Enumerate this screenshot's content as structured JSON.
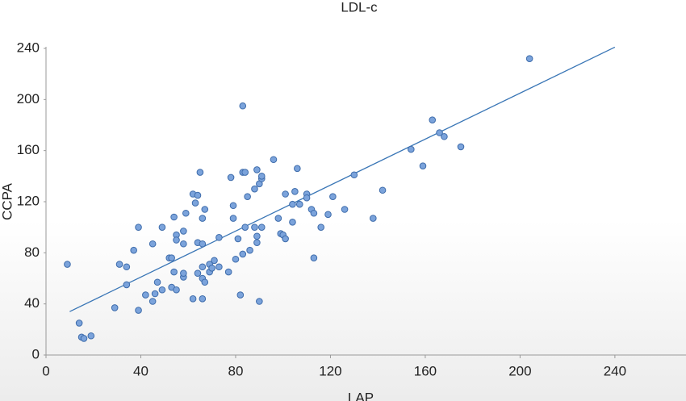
{
  "chart_data": {
    "type": "scatter",
    "title": "LDL-c",
    "x_label": "LAP",
    "y_label": "CCPA",
    "x": [
      9,
      14,
      15,
      16,
      19,
      29,
      31,
      34,
      34,
      37,
      39,
      39,
      42,
      45,
      45,
      46,
      47,
      49,
      49,
      52,
      53,
      53,
      54,
      54,
      55,
      55,
      55,
      58,
      58,
      58,
      58,
      59,
      62,
      62,
      63,
      64,
      64,
      64,
      65,
      66,
      66,
      66,
      66,
      67,
      66,
      67,
      69,
      69,
      70,
      71,
      73,
      73,
      77,
      78,
      79,
      79,
      80,
      81,
      82,
      83,
      83,
      83,
      84,
      84,
      85,
      86,
      88,
      88,
      89,
      89,
      89,
      90,
      90,
      91,
      91,
      91,
      96,
      98,
      99,
      100,
      101,
      101,
      104,
      104,
      105,
      106,
      107,
      110,
      110,
      112,
      113,
      113,
      116,
      119,
      121,
      126,
      130,
      138,
      142,
      154,
      159,
      163,
      166,
      168,
      175,
      204
    ],
    "values": [
      71,
      25,
      14,
      13,
      15,
      37,
      71,
      69,
      55,
      82,
      100,
      35,
      47,
      42,
      87,
      48,
      57,
      51,
      100,
      76,
      76,
      53,
      65,
      108,
      94,
      90,
      51,
      87,
      97,
      61,
      64,
      111,
      44,
      126,
      119,
      64,
      88,
      125,
      143,
      87,
      44,
      69,
      60,
      57,
      107,
      114,
      65,
      71,
      68,
      74,
      69,
      92,
      65,
      139,
      117,
      107,
      75,
      91,
      47,
      79,
      195,
      143,
      143,
      100,
      124,
      82,
      130,
      100,
      93,
      88,
      145,
      42,
      134,
      138,
      140,
      100,
      153,
      107,
      95,
      94,
      91,
      126,
      118,
      104,
      128,
      146,
      118,
      126,
      123,
      114,
      111,
      76,
      100,
      110,
      124,
      114,
      141,
      107,
      129,
      161,
      148,
      184,
      174,
      171,
      163,
      232
    ],
    "color": "#7ba3db",
    "edge_color": "#3e6cab",
    "trendline": {
      "x": [
        10,
        240
      ],
      "values": [
        34,
        241
      ],
      "color": "#3a76b6"
    },
    "xlim": [
      0,
      270
    ],
    "ylim": [
      0,
      240
    ],
    "xticks": [
      0,
      40,
      80,
      120,
      160,
      200,
      240
    ],
    "yticks": [
      0,
      40,
      80,
      120,
      160,
      200,
      240
    ],
    "grid": false
  }
}
